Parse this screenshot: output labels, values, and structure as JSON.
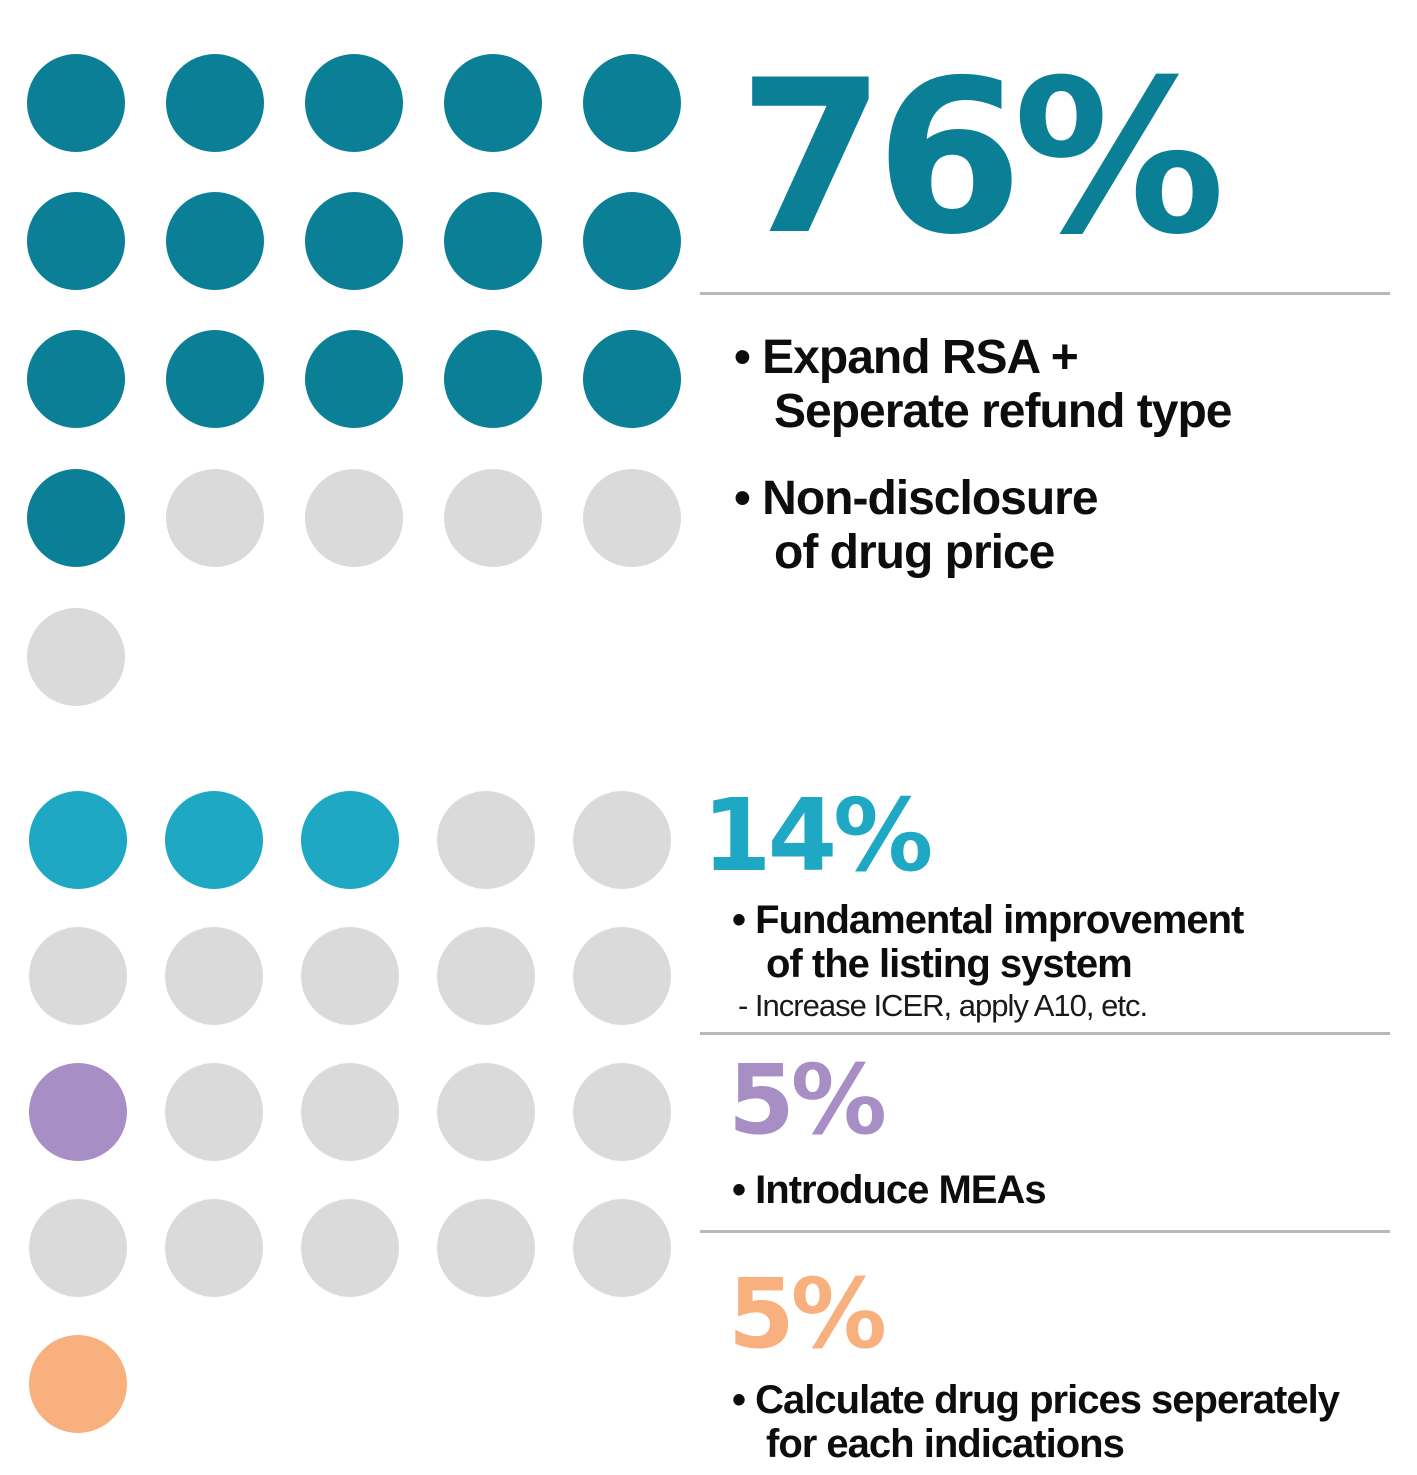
{
  "chart_data": {
    "type": "dot-matrix",
    "colors": {
      "dark_teal": "#0b7f95",
      "light_teal": "#1fa8c3",
      "purple": "#a78fc6",
      "orange": "#f7b07e",
      "empty": "#dadada"
    },
    "groups": [
      {
        "value": 76,
        "label": "76%",
        "color": "#0b7f95",
        "filled_dots": 16,
        "total_dots": 21,
        "items": [
          {
            "bullet": "•",
            "lines": [
              "Expand RSA +",
              "Seperate refund type"
            ]
          },
          {
            "bullet": "•",
            "lines": [
              "Non-disclosure",
              "of drug price"
            ]
          }
        ]
      },
      {
        "value": 14,
        "label": "14%",
        "color": "#1fa8c3",
        "filled_dots": 3,
        "items": [
          {
            "bullet": "•",
            "lines": [
              "Fundamental improvement",
              "of the listing system"
            ]
          }
        ],
        "note": "-  Increase ICER, apply A10, etc."
      },
      {
        "value": 5,
        "label": "5%",
        "color": "#a78fc6",
        "filled_dots": 1,
        "items": [
          {
            "bullet": "•",
            "lines": [
              "Introduce MEAs"
            ]
          }
        ]
      },
      {
        "value": 5,
        "label": "5%",
        "color": "#f7b07e",
        "filled_dots": 1,
        "items": [
          {
            "bullet": "•",
            "lines": [
              "Calculate drug prices seperately",
              "for each indications"
            ]
          }
        ]
      }
    ]
  }
}
